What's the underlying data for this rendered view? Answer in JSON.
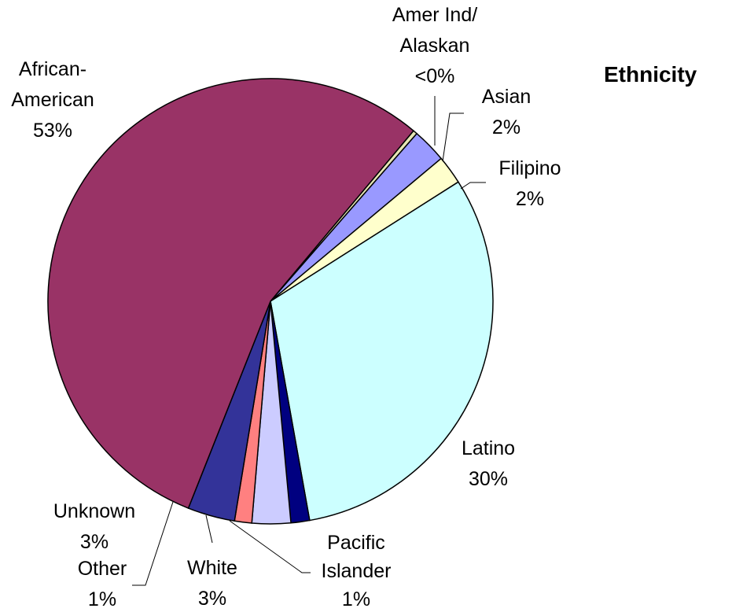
{
  "chart_data": {
    "type": "pie",
    "title": "Ethnicity",
    "slices": [
      {
        "name": "Amer Ind/ Alaskan",
        "label_lines": [
          "Amer Ind/",
          "Alaskan",
          "<0%"
        ],
        "value": 0.3,
        "pct_label": "<0%",
        "color": "#e6e6b4"
      },
      {
        "name": "Asian",
        "label_lines": [
          "Asian",
          "2%"
        ],
        "value": 2.4,
        "pct_label": "2%",
        "color": "#9999ff"
      },
      {
        "name": "Filipino",
        "label_lines": [
          "Filipino",
          "2%"
        ],
        "value": 2.0,
        "pct_label": "2%",
        "color": "#ffffcc"
      },
      {
        "name": "Latino",
        "label_lines": [
          "Latino",
          "30%"
        ],
        "value": 30.0,
        "pct_label": "30%",
        "color": "#ccffff"
      },
      {
        "name": "Pacific Islander",
        "label_lines": [
          "Pacific",
          "Islander",
          "1%"
        ],
        "value": 1.3,
        "pct_label": "1%",
        "color": "#000080"
      },
      {
        "name": "White",
        "label_lines": [
          "White",
          "3%"
        ],
        "value": 2.7,
        "pct_label": "3%",
        "color": "#ccccff"
      },
      {
        "name": "Other",
        "label_lines": [
          "Other",
          "1%"
        ],
        "value": 1.2,
        "pct_label": "1%",
        "color": "#ff8080"
      },
      {
        "name": "Unknown",
        "label_lines": [
          "Unknown",
          "3%"
        ],
        "value": 3.3,
        "pct_label": "3%",
        "color": "#333399"
      },
      {
        "name": "African-American",
        "label_lines": [
          "African-",
          "American",
          "53%"
        ],
        "value": 53.0,
        "pct_label": "53%",
        "color": "#993366"
      }
    ]
  }
}
